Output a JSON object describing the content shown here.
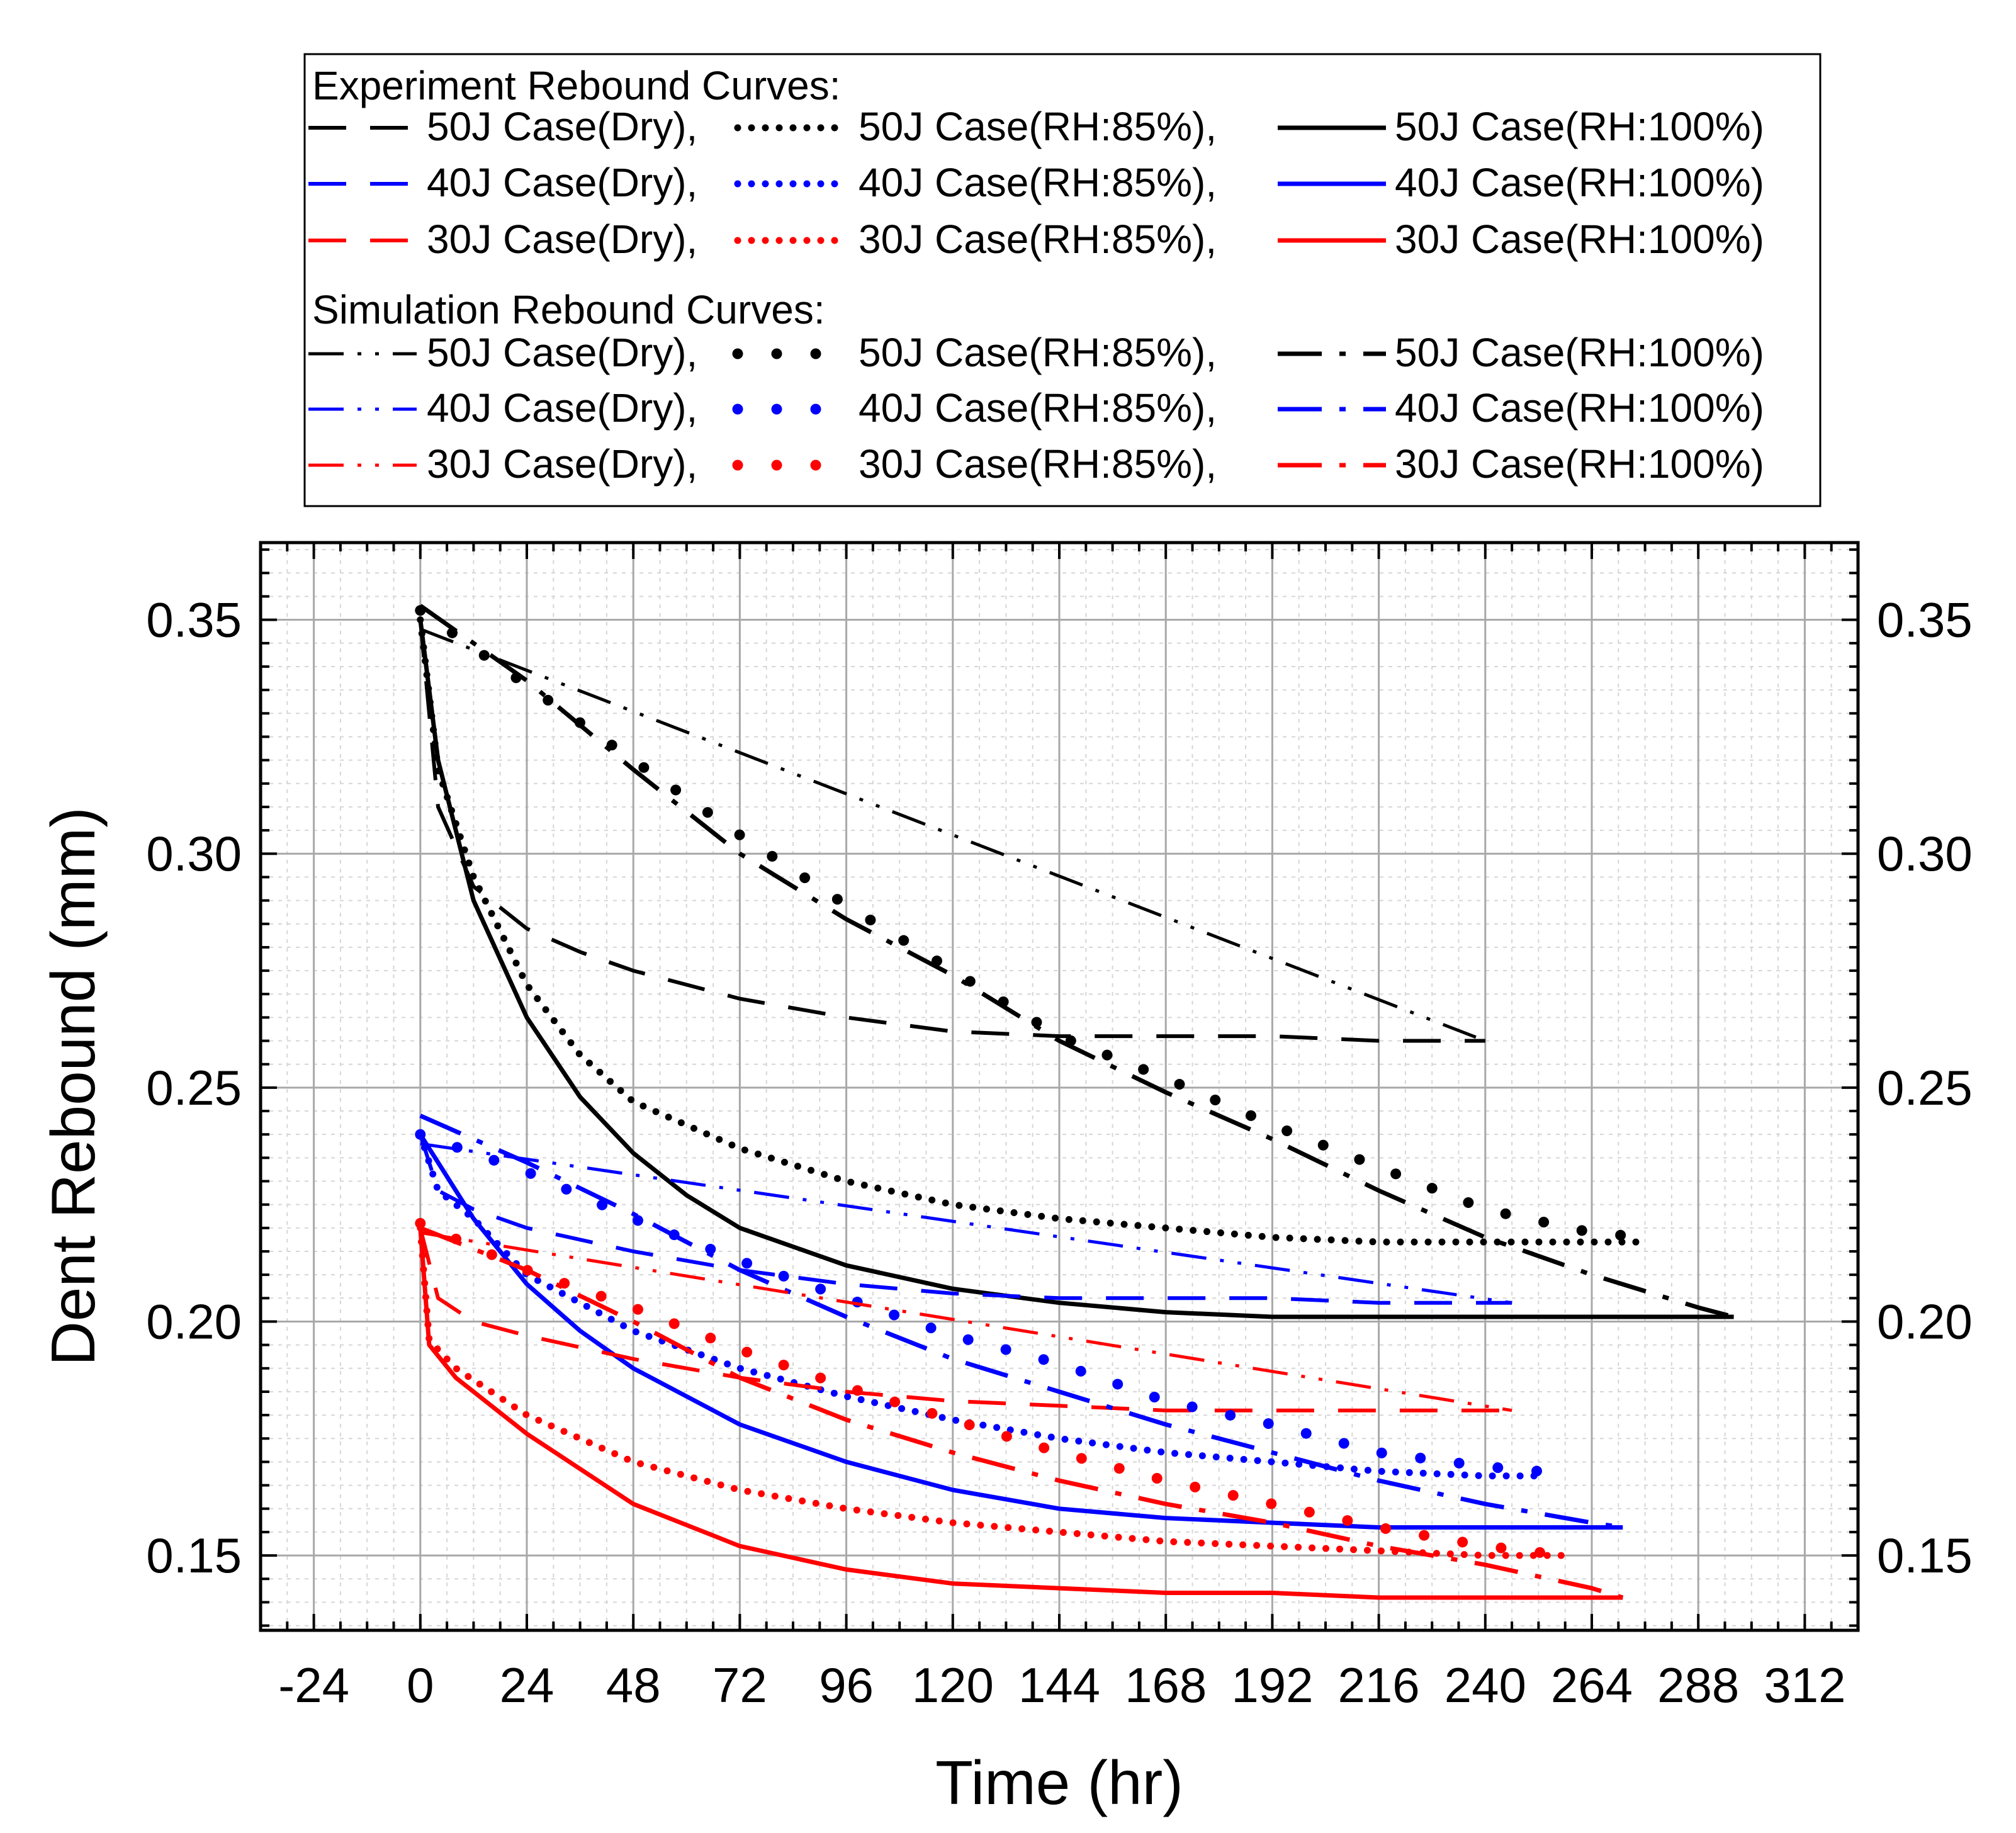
{
  "chart_data": {
    "type": "line",
    "xlabel": "Time (hr)",
    "ylabel": "Dent Rebound (mm)",
    "xlim": [
      -36,
      324
    ],
    "ylim": [
      0.134,
      0.3665
    ],
    "x_ticks": [
      -24,
      0,
      24,
      48,
      72,
      96,
      120,
      144,
      168,
      192,
      216,
      240,
      264,
      288,
      312
    ],
    "x_tick_labels": [
      "-24",
      "0",
      "24",
      "48",
      "72",
      "96",
      "120",
      "144",
      "168",
      "192",
      "216",
      "240",
      "264",
      "288",
      "312"
    ],
    "y_ticks": [
      0.15,
      0.2,
      0.25,
      0.3,
      0.35
    ],
    "y_tick_labels": [
      "0.15",
      "0.20",
      "0.25",
      "0.30",
      "0.35"
    ],
    "y_tick_labels_right": [
      "0.15",
      "0.20",
      "0.25",
      "0.30",
      "0.35"
    ],
    "grid": true,
    "legend": {
      "position": "top",
      "experiment_header": "Experiment Rebound Curves:",
      "simulation_header": "Simulation Rebound Curves:"
    },
    "colors": {
      "50J": "#000000",
      "40J": "#0000ff",
      "30J": "#ff0000"
    },
    "series": [
      {
        "name": "50J Case(Dry),",
        "group": "experiment",
        "color": "#000000",
        "style": "dash",
        "x": [
          0,
          4,
          12,
          24,
          36,
          48,
          72,
          96,
          120,
          144,
          168,
          192,
          216,
          240
        ],
        "y": [
          0.35,
          0.31,
          0.293,
          0.284,
          0.279,
          0.275,
          0.269,
          0.265,
          0.262,
          0.261,
          0.261,
          0.261,
          0.26,
          0.26
        ]
      },
      {
        "name": "50J Case(RH:85%),",
        "group": "experiment",
        "color": "#000000",
        "style": "dot",
        "x": [
          0,
          4,
          12,
          24,
          36,
          48,
          72,
          96,
          120,
          144,
          168,
          192,
          216,
          240,
          264,
          276
        ],
        "y": [
          0.35,
          0.318,
          0.295,
          0.272,
          0.257,
          0.247,
          0.237,
          0.23,
          0.225,
          0.222,
          0.22,
          0.218,
          0.217,
          0.217,
          0.217,
          0.217
        ]
      },
      {
        "name": "50J Case(RH:100%)",
        "group": "experiment",
        "color": "#000000",
        "style": "solid",
        "x": [
          0,
          4,
          12,
          24,
          36,
          48,
          60,
          72,
          96,
          120,
          144,
          168,
          192,
          216,
          240,
          264,
          288,
          296
        ],
        "y": [
          0.35,
          0.32,
          0.29,
          0.265,
          0.248,
          0.236,
          0.227,
          0.22,
          0.212,
          0.207,
          0.204,
          0.202,
          0.201,
          0.201,
          0.201,
          0.201,
          0.201,
          0.201
        ]
      },
      {
        "name": "40J Case(Dry),",
        "group": "experiment",
        "color": "#0000ff",
        "style": "dash",
        "x": [
          0,
          4,
          12,
          24,
          48,
          72,
          96,
          120,
          144,
          168,
          192,
          216,
          240,
          246
        ],
        "y": [
          0.24,
          0.228,
          0.224,
          0.22,
          0.215,
          0.211,
          0.208,
          0.206,
          0.205,
          0.205,
          0.205,
          0.204,
          0.204,
          0.204
        ]
      },
      {
        "name": "40J Case(RH:85%),",
        "group": "experiment",
        "color": "#0000ff",
        "style": "dot",
        "x": [
          0,
          4,
          12,
          24,
          48,
          72,
          96,
          120,
          144,
          168,
          192,
          216,
          240,
          252
        ],
        "y": [
          0.24,
          0.228,
          0.222,
          0.21,
          0.198,
          0.19,
          0.184,
          0.179,
          0.175,
          0.172,
          0.17,
          0.168,
          0.167,
          0.167
        ]
      },
      {
        "name": "40J Case(RH:100%)",
        "group": "experiment",
        "color": "#0000ff",
        "style": "solid",
        "x": [
          0,
          4,
          12,
          24,
          36,
          48,
          72,
          96,
          120,
          144,
          168,
          192,
          216,
          240,
          264,
          271
        ],
        "y": [
          0.24,
          0.234,
          0.222,
          0.208,
          0.198,
          0.19,
          0.178,
          0.17,
          0.164,
          0.16,
          0.158,
          0.157,
          0.156,
          0.156,
          0.156,
          0.156
        ]
      },
      {
        "name": "30J Case(Dry),",
        "group": "experiment",
        "color": "#ff0000",
        "style": "dash",
        "x": [
          0,
          4,
          12,
          24,
          48,
          72,
          96,
          120,
          144,
          168,
          192,
          216,
          240,
          246
        ],
        "y": [
          0.22,
          0.205,
          0.2,
          0.197,
          0.192,
          0.188,
          0.185,
          0.183,
          0.182,
          0.181,
          0.181,
          0.181,
          0.181,
          0.181
        ]
      },
      {
        "name": "30J Case(RH:85%),",
        "group": "experiment",
        "color": "#ff0000",
        "style": "dot",
        "x": [
          0,
          2,
          8,
          24,
          48,
          72,
          96,
          120,
          144,
          168,
          192,
          216,
          240,
          258
        ],
        "y": [
          0.22,
          0.196,
          0.19,
          0.18,
          0.17,
          0.164,
          0.16,
          0.157,
          0.155,
          0.153,
          0.152,
          0.151,
          0.15,
          0.15
        ]
      },
      {
        "name": "30J Case(RH:100%)",
        "group": "experiment",
        "color": "#ff0000",
        "style": "solid",
        "x": [
          0,
          2,
          8,
          24,
          48,
          72,
          96,
          120,
          144,
          168,
          192,
          216,
          240,
          264,
          271
        ],
        "y": [
          0.22,
          0.195,
          0.188,
          0.176,
          0.161,
          0.152,
          0.147,
          0.144,
          0.143,
          0.142,
          0.142,
          0.141,
          0.141,
          0.141,
          0.141
        ]
      },
      {
        "name": "50J Case(Dry),",
        "group": "simulation",
        "color": "#000000",
        "style": "dashdotdot",
        "x": [
          0,
          240
        ],
        "y": [
          0.348,
          0.26
        ]
      },
      {
        "name": "50J Case(RH:85%),",
        "group": "simulation",
        "color": "#000000",
        "style": "sparse-dot",
        "x": [
          0,
          24,
          48,
          72,
          96,
          120,
          144,
          168,
          192,
          216,
          240,
          264,
          276
        ],
        "y": [
          0.352,
          0.336,
          0.32,
          0.304,
          0.289,
          0.275,
          0.261,
          0.252,
          0.242,
          0.233,
          0.224,
          0.219,
          0.218
        ]
      },
      {
        "name": "50J Case(RH:100%)",
        "group": "simulation",
        "color": "#000000",
        "style": "dashdot",
        "x": [
          0,
          24,
          48,
          72,
          96,
          120,
          144,
          168,
          192,
          216,
          240,
          264,
          288,
          296
        ],
        "y": [
          0.353,
          0.337,
          0.318,
          0.3,
          0.286,
          0.274,
          0.26,
          0.249,
          0.239,
          0.228,
          0.218,
          0.21,
          0.203,
          0.201
        ]
      },
      {
        "name": "40J Case(Dry),",
        "group": "simulation",
        "color": "#0000ff",
        "style": "dashdotdot",
        "x": [
          0,
          246
        ],
        "y": [
          0.238,
          0.204
        ]
      },
      {
        "name": "40J Case(RH:85%),",
        "group": "simulation",
        "color": "#0000ff",
        "style": "sparse-dot",
        "x": [
          0,
          24,
          48,
          72,
          96,
          120,
          144,
          168,
          192,
          216,
          240,
          252
        ],
        "y": [
          0.24,
          0.232,
          0.222,
          0.213,
          0.205,
          0.197,
          0.191,
          0.183,
          0.178,
          0.172,
          0.169,
          0.168
        ]
      },
      {
        "name": "40J Case(RH:100%)",
        "group": "simulation",
        "color": "#0000ff",
        "style": "dashdot",
        "x": [
          0,
          24,
          48,
          72,
          96,
          120,
          144,
          168,
          192,
          216,
          240,
          264,
          271
        ],
        "y": [
          0.244,
          0.234,
          0.223,
          0.211,
          0.201,
          0.192,
          0.185,
          0.178,
          0.172,
          0.166,
          0.161,
          0.157,
          0.156
        ]
      },
      {
        "name": "30J Case(Dry),",
        "group": "simulation",
        "color": "#ff0000",
        "style": "dashdotdot",
        "x": [
          0,
          246
        ],
        "y": [
          0.219,
          0.181
        ]
      },
      {
        "name": "30J Case(RH:85%),",
        "group": "simulation",
        "color": "#ff0000",
        "style": "sparse-dot",
        "x": [
          0,
          24,
          48,
          72,
          96,
          120,
          144,
          168,
          192,
          216,
          240,
          258
        ],
        "y": [
          0.221,
          0.211,
          0.203,
          0.194,
          0.186,
          0.179,
          0.172,
          0.166,
          0.161,
          0.156,
          0.152,
          0.15
        ]
      },
      {
        "name": "30J Case(RH:100%)",
        "group": "simulation",
        "color": "#ff0000",
        "style": "dashdot",
        "x": [
          0,
          24,
          48,
          72,
          96,
          120,
          144,
          168,
          192,
          216,
          240,
          264,
          271
        ],
        "y": [
          0.22,
          0.211,
          0.2,
          0.188,
          0.179,
          0.172,
          0.166,
          0.161,
          0.157,
          0.152,
          0.148,
          0.143,
          0.141
        ]
      }
    ]
  }
}
